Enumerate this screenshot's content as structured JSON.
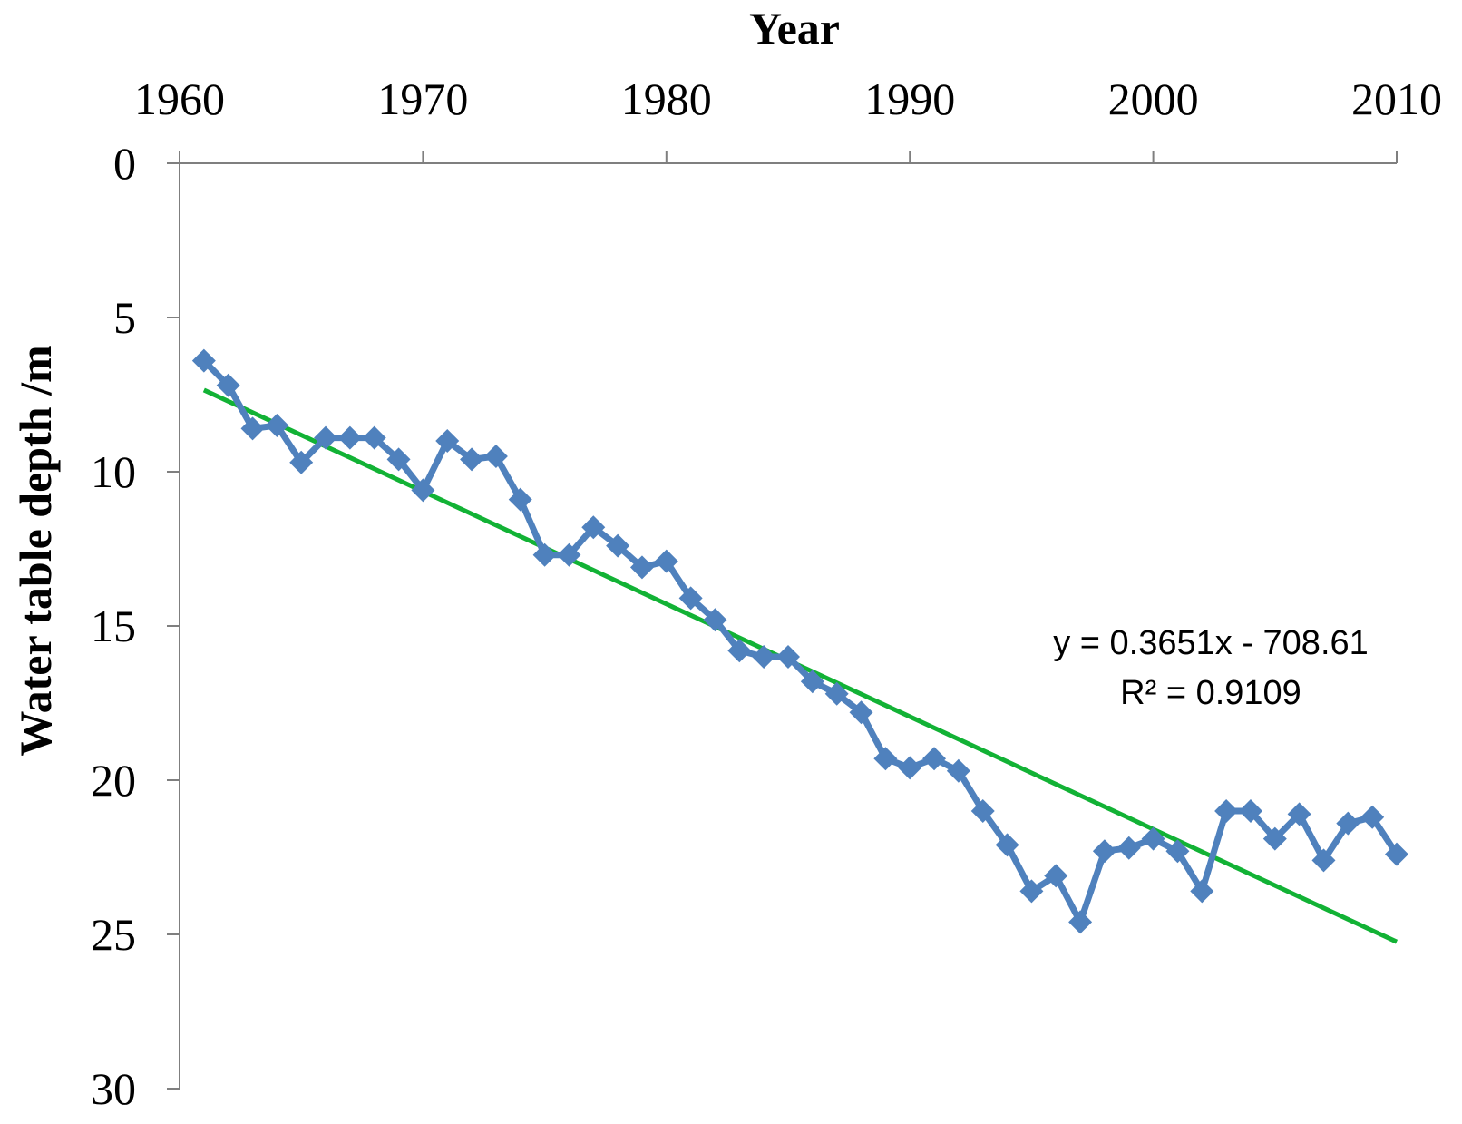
{
  "chart_data": {
    "type": "line",
    "xlabel": "Year",
    "ylabel": "Water table depth /m",
    "xlim": [
      1960,
      2010
    ],
    "ylim": [
      0,
      30
    ],
    "y_inverted": true,
    "x_axis_position": "top",
    "x_ticks": [
      1960,
      1970,
      1980,
      1990,
      2000,
      2010
    ],
    "y_ticks": [
      0,
      5,
      10,
      15,
      20,
      25,
      30
    ],
    "grid": false,
    "legend": "none",
    "series": [
      {
        "color": "#4F81BD",
        "marker": "diamond",
        "x": [
          1961,
          1962,
          1963,
          1964,
          1965,
          1966,
          1967,
          1968,
          1969,
          1970,
          1971,
          1972,
          1973,
          1974,
          1975,
          1976,
          1977,
          1978,
          1979,
          1980,
          1981,
          1982,
          1983,
          1984,
          1985,
          1986,
          1987,
          1988,
          1989,
          1990,
          1991,
          1992,
          1993,
          1994,
          1995,
          1996,
          1997,
          1998,
          1999,
          2000,
          2001,
          2002,
          2003,
          2004,
          2005,
          2006,
          2007,
          2008,
          2009,
          2010
        ],
        "y": [
          6.4,
          7.2,
          8.6,
          8.5,
          9.7,
          8.9,
          8.9,
          8.9,
          9.6,
          10.6,
          9.0,
          9.6,
          9.5,
          10.9,
          12.7,
          12.7,
          11.8,
          12.4,
          13.1,
          12.9,
          14.1,
          14.8,
          15.8,
          16.0,
          16.0,
          16.8,
          17.2,
          17.8,
          19.3,
          19.6,
          19.3,
          19.7,
          21.0,
          22.1,
          23.6,
          23.1,
          24.6,
          22.3,
          22.2,
          21.9,
          22.3,
          23.6,
          21.0,
          21.0,
          21.9,
          21.1,
          22.6,
          21.4,
          21.2,
          22.4
        ]
      }
    ],
    "trendline": {
      "color": "#12B235",
      "slope": 0.3651,
      "intercept": -708.61,
      "x_range": [
        1961,
        2010
      ],
      "equation": "y = 0.3651x - 708.61",
      "r2_label": "R² = 0.9109"
    }
  }
}
